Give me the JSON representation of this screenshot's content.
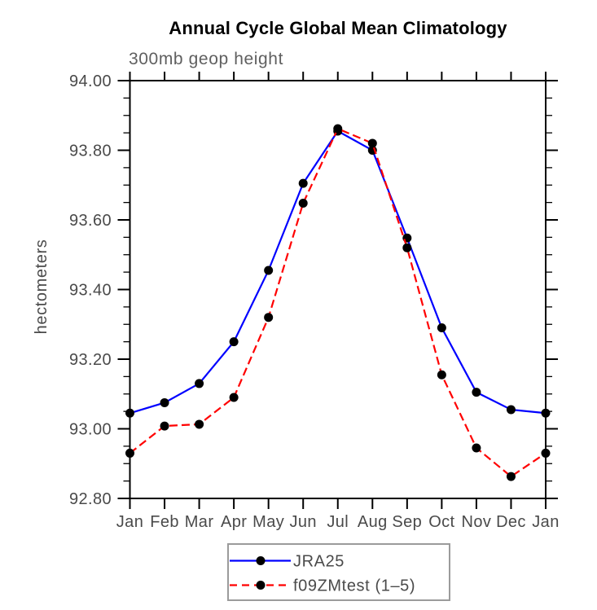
{
  "chart_data": {
    "type": "line",
    "title": "Annual Cycle Global Mean Climatology",
    "subtitle": "300mb geop height",
    "ylabel": "hectometers",
    "xlabel": "",
    "categories": [
      "Jan",
      "Feb",
      "Mar",
      "Apr",
      "May",
      "Jun",
      "Jul",
      "Aug",
      "Sep",
      "Oct",
      "Nov",
      "Dec",
      "Jan"
    ],
    "ylim": [
      92.8,
      94.0
    ],
    "ytick_step": 0.2,
    "yminor_step": 0.05,
    "yticks": [
      {
        "v": 94.0,
        "label": "94.00"
      },
      {
        "v": 93.8,
        "label": "93.80"
      },
      {
        "v": 93.6,
        "label": "93.60"
      },
      {
        "v": 93.4,
        "label": "93.40"
      },
      {
        "v": 93.2,
        "label": "93.20"
      },
      {
        "v": 93.0,
        "label": "93.00"
      },
      {
        "v": 92.8,
        "label": "92.80"
      }
    ],
    "grid": false,
    "legend_position": "bottom-center",
    "series": [
      {
        "name": "JRA25",
        "color": "#0000ff",
        "line_style": "solid",
        "marker": "filled-circle",
        "marker_color": "#000000",
        "values": [
          93.045,
          93.075,
          93.13,
          93.25,
          93.455,
          93.705,
          93.855,
          93.8,
          93.548,
          93.29,
          93.105,
          93.055,
          93.045
        ]
      },
      {
        "name": "f09ZMtest (1–5)",
        "color": "#ff0000",
        "line_style": "dashed",
        "marker": "filled-circle",
        "marker_color": "#000000",
        "values": [
          92.93,
          93.008,
          93.013,
          93.09,
          93.32,
          93.648,
          93.862,
          93.82,
          93.52,
          93.155,
          92.945,
          92.863,
          92.93
        ]
      }
    ],
    "colors": {
      "axis": "#000000",
      "tick_label": "#4a4a4a",
      "subtitle": "#5f5f5f",
      "legend_border": "#9b9b9b",
      "background": "#ffffff"
    }
  }
}
